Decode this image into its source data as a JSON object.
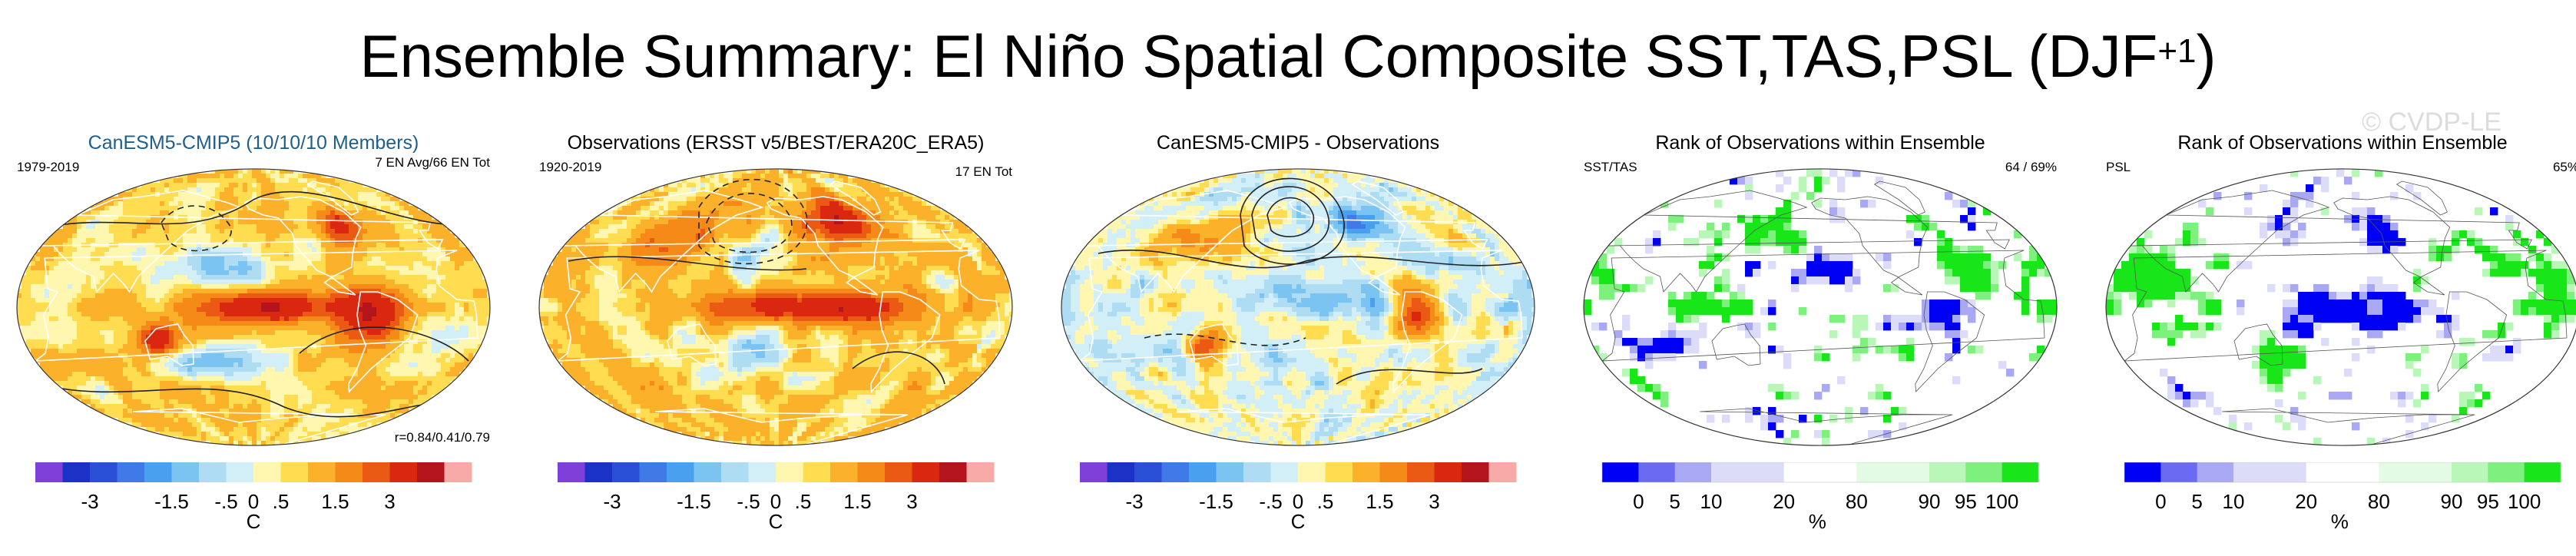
{
  "title": {
    "main": "Ensemble Summary: El Niño Spatial Composite SST,TAS,PSL (DJF",
    "superscript": "+1",
    "close": ")"
  },
  "watermark": "© CVDP-LE",
  "palette": {
    "temperature": [
      "#7f3fd9",
      "#1c32c7",
      "#2a50d8",
      "#3f7ae6",
      "#49a0ee",
      "#7bc4f1",
      "#aedcf3",
      "#d2eef7",
      "#fff7b0",
      "#ffdc50",
      "#fbb12a",
      "#f68a19",
      "#ea5a14",
      "#d9280f",
      "#b4141c",
      "#f7aaa8"
    ],
    "rank": [
      "#0000f5",
      "#6a6af2",
      "#a9a9f3",
      "#dcdcf8",
      "#ffffff",
      "#ffffff",
      "#e3fbe3",
      "#b9f7b9",
      "#7df07d",
      "#19e619"
    ]
  },
  "chart_data": [
    {
      "type": "heatmap",
      "title": "CanESM5-CMIP5 (10/10/10 Members)",
      "top_left": "1979-2019",
      "top_right": "7 EN Avg/66 EN Tot",
      "bottom_right": "r=0.84/0.41/0.79",
      "colorbar": {
        "tick_labels": [
          "-3",
          "-1.5",
          "-.5",
          "0",
          ".5",
          "1.5",
          "3"
        ],
        "unit": "C"
      }
    },
    {
      "type": "heatmap",
      "title": "Observations (ERSST v5/BEST/ERA20C_ERA5)",
      "top_left": "1920-2019",
      "top_right": "17 EN Tot",
      "colorbar": {
        "tick_labels": [
          "-3",
          "-1.5",
          "-.5",
          "0",
          ".5",
          "1.5",
          "3"
        ],
        "unit": "C"
      }
    },
    {
      "type": "heatmap",
      "title": "CanESM5-CMIP5 - Observations",
      "colorbar": {
        "tick_labels": [
          "-3",
          "-1.5",
          "-.5",
          "0",
          ".5",
          "1.5",
          "3"
        ],
        "unit": "C"
      }
    },
    {
      "type": "heatmap",
      "title": "Rank of Observations within Ensemble",
      "top_left": "SST/TAS",
      "top_right": "64 /  69%",
      "colorbar": {
        "tick_labels": [
          "0",
          "5",
          "10",
          "20",
          "80",
          "90",
          "95",
          "100"
        ],
        "unit": "%"
      }
    },
    {
      "type": "heatmap",
      "title": "Rank of Observations within Ensemble",
      "top_left": "PSL",
      "top_right": "65%",
      "colorbar": {
        "tick_labels": [
          "0",
          "5",
          "10",
          "20",
          "80",
          "90",
          "95",
          "100"
        ],
        "unit": "%"
      }
    }
  ]
}
